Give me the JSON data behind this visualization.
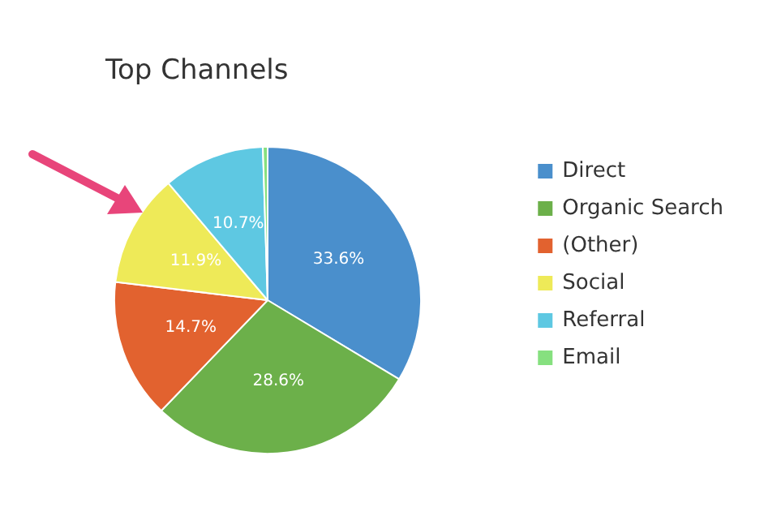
{
  "chart_data": {
    "type": "pie",
    "title": "Top Channels",
    "categories": [
      "Direct",
      "Organic Search",
      "(Other)",
      "Social",
      "Referral",
      "Email"
    ],
    "values": [
      33.6,
      28.6,
      14.7,
      11.9,
      10.7,
      0.5
    ],
    "colors": [
      "#4a8fcc",
      "#6cb04a",
      "#e2622f",
      "#eeea58",
      "#5ec8e2",
      "#86e07f"
    ],
    "value_labels": [
      "33.6%",
      "28.6%",
      "14.7%",
      "11.9%",
      "10.7%",
      null
    ],
    "legend": "right"
  }
}
